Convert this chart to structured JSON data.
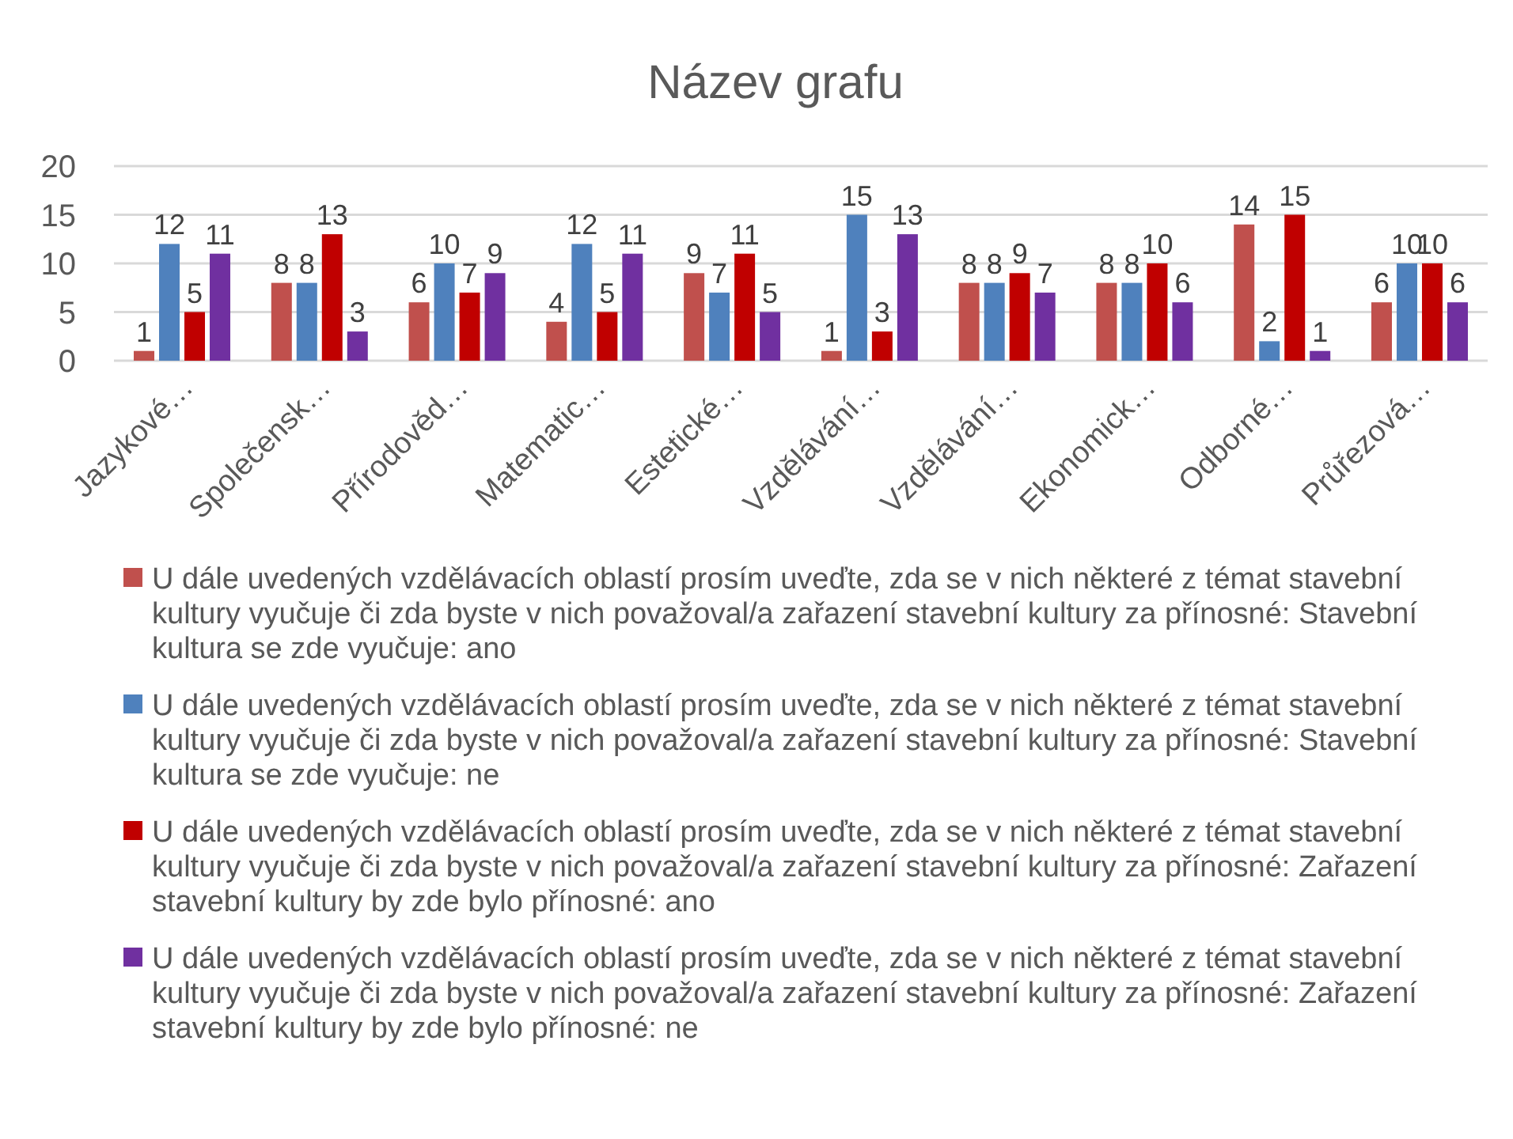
{
  "chart_data": {
    "type": "bar",
    "title": "Název grafu",
    "categories": [
      "Jazykové…",
      "Společensk…",
      "Přírodověd…",
      "Matematic…",
      "Estetické…",
      "Vzdělávání…",
      "Vzdělávání…",
      "Ekonomick…",
      "Odborné…",
      "Průřezová…"
    ],
    "series": [
      {
        "name": "U dále uvedených vzdělávacích oblastí prosím uveďte, zda se v nich některé z témat stavební kultury vyučuje či zda byste v nich považoval/a zařazení stavební kultury za přínosné: Stavební kultura se zde vyučuje: ano",
        "color": "#c0504d",
        "values": [
          1,
          8,
          6,
          4,
          9,
          1,
          8,
          8,
          14,
          6
        ]
      },
      {
        "name": "U dále uvedených vzdělávacích oblastí prosím uveďte, zda se v nich některé z témat stavební kultury vyučuje či zda byste v nich považoval/a zařazení stavební kultury za přínosné: Stavební kultura se zde vyučuje: ne",
        "color": "#4f81bd",
        "values": [
          12,
          8,
          10,
          12,
          7,
          15,
          8,
          8,
          2,
          10
        ]
      },
      {
        "name": "U dále uvedených vzdělávacích oblastí prosím uveďte, zda se v nich některé z témat stavební kultury vyučuje či zda byste v nich považoval/a zařazení stavební kultury za přínosné: Zařazení stavební kultury by zde bylo přínosné: ano",
        "color": "#c00000",
        "values": [
          5,
          13,
          7,
          5,
          11,
          3,
          9,
          10,
          15,
          10
        ]
      },
      {
        "name": "U dále uvedených vzdělávacích oblastí prosím uveďte, zda se v nich některé z témat stavební kultury vyučuje či zda byste v nich považoval/a zařazení stavební kultury za přínosné: Zařazení stavební kultury by zde bylo přínosné: ne",
        "color": "#7030a0",
        "values": [
          11,
          3,
          9,
          11,
          5,
          13,
          7,
          6,
          1,
          6
        ]
      }
    ],
    "ylim": [
      0,
      20
    ],
    "yticks": [
      0,
      5,
      10,
      15,
      20
    ],
    "grid": "y",
    "data_labels": true,
    "legend": "bottom"
  }
}
